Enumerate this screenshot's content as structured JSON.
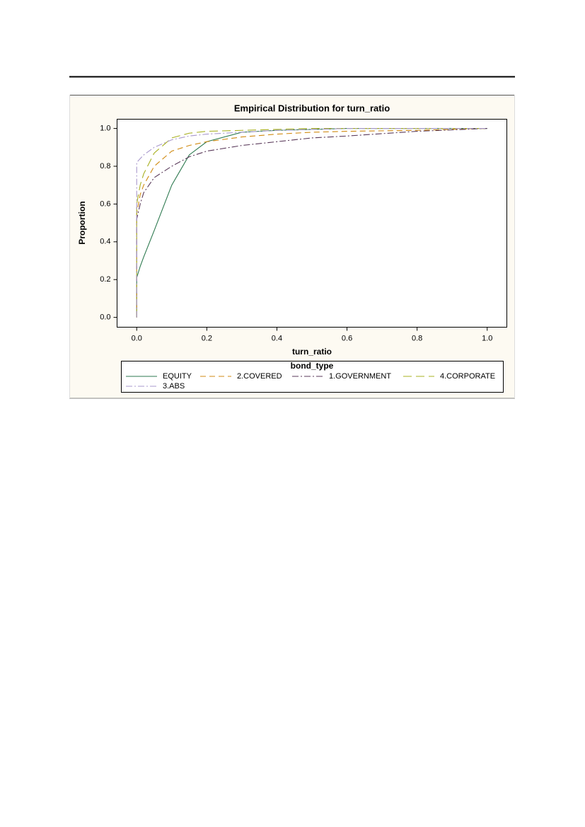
{
  "chart_data": {
    "type": "line",
    "title": "Empirical Distribution for turn_ratio",
    "xlabel": "turn_ratio",
    "ylabel": "Proportion",
    "legend_title": "bond_type",
    "x": [
      0,
      0,
      0.01,
      0.02,
      0.05,
      0.1,
      0.15,
      0.2,
      0.3,
      0.4,
      0.5,
      0.6,
      0.8,
      1.0
    ],
    "series": [
      {
        "name": "EQUITY",
        "color": "#2e7a50",
        "dash": "solid",
        "values": [
          0,
          0.21,
          0.27,
          0.32,
          0.46,
          0.7,
          0.86,
          0.93,
          0.98,
          0.99,
          0.995,
          1,
          1,
          1
        ]
      },
      {
        "name": "2.COVERED",
        "color": "#d08a10",
        "dash": "dash",
        "values": [
          0,
          0.55,
          0.65,
          0.7,
          0.8,
          0.88,
          0.91,
          0.93,
          0.955,
          0.97,
          0.98,
          0.985,
          0.99,
          1
        ]
      },
      {
        "name": "1.GOVERNMENT",
        "color": "#5a3a5a",
        "dash": "dashdot",
        "values": [
          0,
          0.52,
          0.6,
          0.66,
          0.74,
          0.8,
          0.85,
          0.88,
          0.91,
          0.93,
          0.95,
          0.96,
          0.985,
          1
        ]
      },
      {
        "name": "4.CORPORATE",
        "color": "#a8b020",
        "dash": "longdash",
        "values": [
          0,
          0.6,
          0.7,
          0.76,
          0.87,
          0.95,
          0.975,
          0.985,
          0.99,
          0.995,
          1,
          1,
          1,
          1
        ]
      },
      {
        "name": "3.ABS",
        "color": "#a898cc",
        "dash": "dashdot",
        "values": [
          0,
          0.82,
          0.84,
          0.86,
          0.9,
          0.94,
          0.96,
          0.97,
          0.98,
          0.99,
          0.995,
          1,
          1,
          1
        ]
      }
    ],
    "xlim": [
      -0.056,
      1.056
    ],
    "ylim": [
      -0.052,
      1.049
    ],
    "xticks": [
      {
        "value": 0,
        "label": "0.0"
      },
      0.2,
      0.4,
      0.6,
      0.8,
      {
        "value": 1,
        "label": "1.0"
      }
    ],
    "yticks": [
      {
        "value": 0,
        "label": "0.0"
      },
      0.2,
      0.4,
      0.6,
      0.8,
      {
        "value": 1,
        "label": "1.0"
      }
    ],
    "grid": false,
    "legend": "bottom"
  }
}
